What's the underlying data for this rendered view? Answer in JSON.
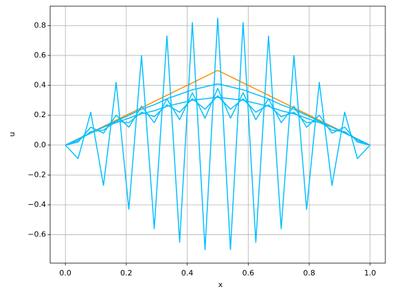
{
  "chart_data": {
    "type": "line",
    "xlabel": "x",
    "ylabel": "u",
    "x": [
      0,
      0.0417,
      0.0833,
      0.125,
      0.1667,
      0.2083,
      0.25,
      0.2917,
      0.3333,
      0.375,
      0.4167,
      0.4583,
      0.5,
      0.5417,
      0.5833,
      0.625,
      0.6667,
      0.7083,
      0.75,
      0.7917,
      0.8333,
      0.875,
      0.9167,
      0.9583,
      1
    ],
    "series": [
      {
        "color": "#ff8c00",
        "values": [
          0,
          0.0417,
          0.0833,
          0.125,
          0.1667,
          0.2083,
          0.25,
          0.2917,
          0.3333,
          0.375,
          0.4167,
          0.4583,
          0.5,
          0.4583,
          0.4167,
          0.375,
          0.3333,
          0.2917,
          0.25,
          0.2083,
          0.1667,
          0.125,
          0.0833,
          0.0417,
          0
        ]
      },
      {
        "color": "#00bfff",
        "values": [
          0,
          -0.09,
          0.22,
          -0.27,
          0.42,
          -0.43,
          0.6,
          -0.56,
          0.73,
          -0.65,
          0.82,
          -0.7,
          0.85,
          -0.7,
          0.82,
          -0.65,
          0.73,
          -0.56,
          0.6,
          -0.43,
          0.42,
          -0.27,
          0.22,
          -0.09,
          0
        ]
      },
      {
        "color": "#00bfff",
        "values": [
          0,
          0.02,
          0.12,
          0.08,
          0.2,
          0.12,
          0.26,
          0.15,
          0.31,
          0.17,
          0.35,
          0.18,
          0.38,
          0.18,
          0.35,
          0.17,
          0.31,
          0.15,
          0.26,
          0.12,
          0.2,
          0.08,
          0.12,
          0.02,
          0
        ]
      },
      {
        "color": "#00bfff",
        "values": [
          0,
          0.03,
          0.09,
          0.1,
          0.16,
          0.15,
          0.22,
          0.19,
          0.27,
          0.22,
          0.31,
          0.24,
          0.33,
          0.24,
          0.31,
          0.22,
          0.27,
          0.19,
          0.22,
          0.15,
          0.16,
          0.1,
          0.09,
          0.03,
          0
        ]
      },
      {
        "color": "#00bfff",
        "values": [
          0,
          0.04,
          0.08,
          0.12,
          0.15,
          0.18,
          0.21,
          0.23,
          0.26,
          0.28,
          0.3,
          0.31,
          0.32,
          0.31,
          0.3,
          0.28,
          0.26,
          0.23,
          0.21,
          0.18,
          0.15,
          0.12,
          0.08,
          0.04,
          0
        ]
      },
      {
        "color": "#00bfff",
        "values": [
          0,
          0.04,
          0.08,
          0.12,
          0.16,
          0.2,
          0.24,
          0.27,
          0.31,
          0.34,
          0.37,
          0.39,
          0.41,
          0.39,
          0.37,
          0.34,
          0.31,
          0.27,
          0.24,
          0.2,
          0.16,
          0.12,
          0.08,
          0.04,
          0
        ]
      }
    ],
    "xlim": [
      -0.05,
      1.05
    ],
    "xticks": [
      {
        "value": 0,
        "label": "0.0"
      },
      0.2,
      0.4,
      0.6,
      0.8,
      {
        "value": 1,
        "label": "1.0"
      }
    ],
    "ylim": [
      -0.79,
      0.93
    ],
    "yticks": [
      {
        "value": -0.6,
        "label": "−0.6"
      },
      {
        "value": -0.4,
        "label": "−0.4"
      },
      {
        "value": -0.2,
        "label": "−0.2"
      },
      {
        "value": 0,
        "label": "0.0"
      },
      0.2,
      0.4,
      0.6,
      0.8
    ],
    "grid": true
  }
}
